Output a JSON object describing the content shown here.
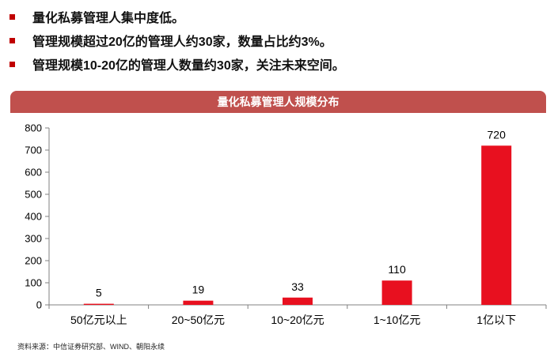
{
  "bullets": [
    "量化私募管理人集中度低。",
    "管理规模超过20亿的管理人约30家，数量占比约3%。",
    "管理规模10-20亿的管理人数量约30家，关注未来空间。"
  ],
  "colors": {
    "bullet": "#c00000",
    "title_bar": "#c0504d",
    "bar": "#e8101f"
  },
  "chart_data": {
    "type": "bar",
    "title": "量化私募管理人规模分布",
    "categories": [
      "50亿元以上",
      "20~50亿元",
      "10~20亿元",
      "1~10亿元",
      "1亿以下"
    ],
    "values": [
      5,
      19,
      33,
      110,
      720
    ],
    "data_labels": [
      "5",
      "19",
      "33",
      "110",
      "720"
    ],
    "ylim": [
      0,
      800
    ],
    "yticks": [
      0,
      100,
      200,
      300,
      400,
      500,
      600,
      700,
      800
    ],
    "ytick_labels": [
      "0",
      "100",
      "200",
      "300",
      "400",
      "500",
      "600",
      "700",
      "800"
    ],
    "grid": false,
    "legend": "none"
  },
  "source": "资料来源：中信证券研究部、WIND、朝阳永续"
}
